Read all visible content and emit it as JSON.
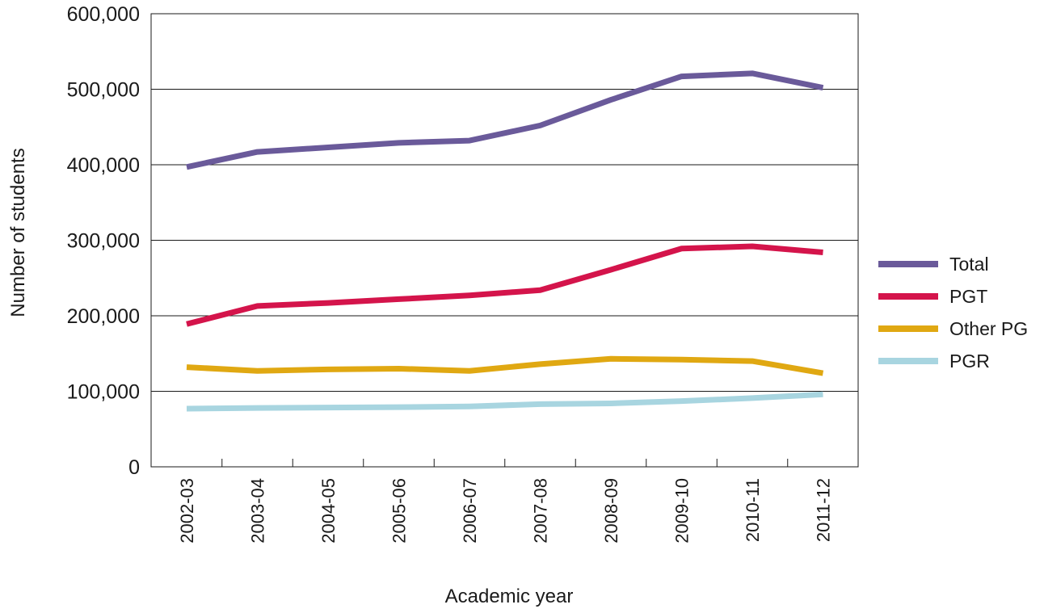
{
  "chart_data": {
    "type": "line",
    "categories": [
      "2002-03",
      "2003-04",
      "2004-05",
      "2005-06",
      "2006-07",
      "2007-08",
      "2008-09",
      "2009-10",
      "2010-11",
      "2011-12"
    ],
    "series": [
      {
        "name": "Total",
        "color": "#6a5a9a",
        "values": [
          397000,
          417000,
          423000,
          429000,
          432000,
          452000,
          486000,
          517000,
          521000,
          502000
        ]
      },
      {
        "name": "PGT",
        "color": "#d4144b",
        "values": [
          189000,
          213000,
          217000,
          222000,
          227000,
          234000,
          261000,
          289000,
          292000,
          284000
        ]
      },
      {
        "name": "Other PG",
        "color": "#e0a812",
        "values": [
          132000,
          127000,
          129000,
          130000,
          127000,
          136000,
          143000,
          142000,
          140000,
          124000
        ]
      },
      {
        "name": "PGR",
        "color": "#a8d5e0",
        "values": [
          77000,
          78000,
          78500,
          79000,
          80000,
          83000,
          84000,
          87000,
          91000,
          96000
        ]
      }
    ],
    "title": "",
    "xlabel": "Academic year",
    "ylabel": "Number of students",
    "ylim": [
      0,
      600000
    ],
    "yticks": [
      0,
      100000,
      200000,
      300000,
      400000,
      500000,
      600000
    ],
    "ytick_labels": [
      "0",
      "100,000",
      "200,000",
      "300,000",
      "400,000",
      "500,000",
      "600,000"
    ],
    "grid": true,
    "legend_position": "right"
  }
}
